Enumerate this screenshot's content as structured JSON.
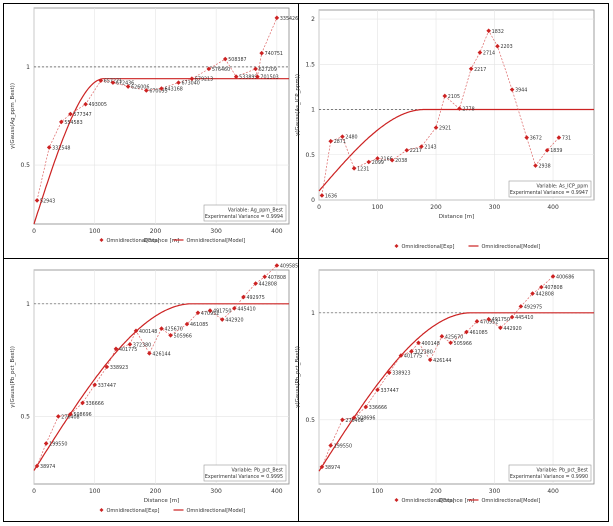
{
  "chart_data": [
    {
      "type": "scatter",
      "xlabel": "Distance [m]",
      "ylabel": "γ(Gauss(Ag_ppm_Best))",
      "xlim": [
        0,
        420
      ],
      "ylim": [
        0.2,
        1.3
      ],
      "yticks": [
        0.5,
        1
      ],
      "xticks": [
        0,
        100,
        200,
        300,
        400
      ],
      "sill": 1,
      "legend_position": "top",
      "series": [
        {
          "name": "Omnidirectional[Exp]",
          "color": "#cc2222",
          "points": [
            {
              "x": 5,
              "y": 0.32,
              "label": "52943"
            },
            {
              "x": 25,
              "y": 0.59,
              "label": "332548"
            },
            {
              "x": 45,
              "y": 0.72,
              "label": "554583"
            },
            {
              "x": 60,
              "y": 0.76,
              "label": "577347"
            },
            {
              "x": 85,
              "y": 0.81,
              "label": "493005"
            },
            {
              "x": 110,
              "y": 0.93,
              "label": "657271"
            },
            {
              "x": 130,
              "y": 0.92,
              "label": "672436"
            },
            {
              "x": 155,
              "y": 0.9,
              "label": "626006"
            },
            {
              "x": 185,
              "y": 0.88,
              "label": "670095"
            },
            {
              "x": 210,
              "y": 0.89,
              "label": "643168"
            },
            {
              "x": 238,
              "y": 0.92,
              "label": "673040"
            },
            {
              "x": 260,
              "y": 0.94,
              "label": "679213"
            },
            {
              "x": 288,
              "y": 0.99,
              "label": "576460"
            },
            {
              "x": 315,
              "y": 1.04,
              "label": "508387"
            },
            {
              "x": 333,
              "y": 0.95,
              "label": "533899"
            },
            {
              "x": 365,
              "y": 0.99,
              "label": "627209"
            },
            {
              "x": 368,
              "y": 0.95,
              "label": "701503"
            },
            {
              "x": 375,
              "y": 1.07,
              "label": "740751"
            },
            {
              "x": 400,
              "y": 1.25,
              "label": "335426"
            }
          ]
        },
        {
          "name": "Omnidirectional[Model]",
          "color": "#cc2222",
          "model": {
            "nugget": 0.2,
            "sill": 0.94,
            "range": 115
          }
        }
      ],
      "annotation": [
        "Variable: Ag_ppm_Best",
        "Experimental Variance = 0.9994"
      ]
    },
    {
      "type": "scatter",
      "xlabel": "Distance [m]",
      "ylabel": "γ(Gauss(As_ICP_ppm))",
      "xlim": [
        0,
        470
      ],
      "ylim": [
        0,
        2.1
      ],
      "yticks": [
        0,
        0.5,
        1,
        1.5,
        2
      ],
      "ytick_labels": [
        "0",
        "0.5",
        "1",
        "1.5",
        "2"
      ],
      "xticks": [
        0,
        100,
        200,
        300,
        400
      ],
      "sill": 1,
      "legend_position": "top",
      "series": [
        {
          "name": "Omnidirectional[Exp]",
          "color": "#cc2222",
          "points": [
            {
              "x": 5,
              "y": 0.05,
              "label": "1636"
            },
            {
              "x": 20,
              "y": 0.65,
              "label": "2871"
            },
            {
              "x": 40,
              "y": 0.7,
              "label": "2480"
            },
            {
              "x": 60,
              "y": 0.35,
              "label": "1231"
            },
            {
              "x": 85,
              "y": 0.42,
              "label": "2099"
            },
            {
              "x": 100,
              "y": 0.46,
              "label": "2166"
            },
            {
              "x": 125,
              "y": 0.44,
              "label": "2038"
            },
            {
              "x": 150,
              "y": 0.55,
              "label": "2217"
            },
            {
              "x": 175,
              "y": 0.59,
              "label": "2143"
            },
            {
              "x": 200,
              "y": 0.8,
              "label": "2921"
            },
            {
              "x": 215,
              "y": 1.15,
              "label": "2105"
            },
            {
              "x": 240,
              "y": 1.01,
              "label": "2778"
            },
            {
              "x": 260,
              "y": 1.45,
              "label": "2217"
            },
            {
              "x": 275,
              "y": 1.63,
              "label": "2714"
            },
            {
              "x": 290,
              "y": 1.87,
              "label": "1832"
            },
            {
              "x": 305,
              "y": 1.7,
              "label": "2203"
            },
            {
              "x": 330,
              "y": 1.22,
              "label": "3944"
            },
            {
              "x": 355,
              "y": 0.69,
              "label": "3672"
            },
            {
              "x": 370,
              "y": 0.38,
              "label": "2938"
            },
            {
              "x": 390,
              "y": 0.55,
              "label": "1839"
            },
            {
              "x": 410,
              "y": 0.69,
              "label": "731"
            }
          ]
        },
        {
          "name": "Omnidirectional[Model]",
          "color": "#cc2222",
          "model": {
            "nugget": 0.1,
            "sill": 1.0,
            "range": 180
          }
        }
      ],
      "annotation": [
        "Variable: As_ICP_ppm",
        "Experimental Variance = 0.9947"
      ]
    },
    {
      "type": "scatter",
      "xlabel": "Distance [m]",
      "ylabel": "γ(Gauss(Pb_pct_Best))",
      "xlim": [
        0,
        420
      ],
      "ylim": [
        0.2,
        1.15
      ],
      "yticks": [
        0.5,
        1
      ],
      "xticks": [
        0,
        100,
        200,
        300,
        400
      ],
      "sill": 1,
      "legend_position": "bottom",
      "series": [
        {
          "name": "Omnidirectional[Exp]",
          "color": "#cc2222",
          "points": [
            {
              "x": 5,
              "y": 0.28,
              "label": "38974"
            },
            {
              "x": 20,
              "y": 0.38,
              "label": "199550"
            },
            {
              "x": 40,
              "y": 0.5,
              "label": "276408"
            },
            {
              "x": 60,
              "y": 0.51,
              "label": "508696"
            },
            {
              "x": 80,
              "y": 0.56,
              "label": "336666"
            },
            {
              "x": 100,
              "y": 0.64,
              "label": "337447"
            },
            {
              "x": 120,
              "y": 0.72,
              "label": "338923"
            },
            {
              "x": 135,
              "y": 0.8,
              "label": "401775"
            },
            {
              "x": 158,
              "y": 0.82,
              "label": "372380"
            },
            {
              "x": 168,
              "y": 0.88,
              "label": "400148"
            },
            {
              "x": 190,
              "y": 0.78,
              "label": "426144"
            },
            {
              "x": 210,
              "y": 0.89,
              "label": "425670"
            },
            {
              "x": 225,
              "y": 0.86,
              "label": "505966"
            },
            {
              "x": 252,
              "y": 0.91,
              "label": "461085"
            },
            {
              "x": 270,
              "y": 0.96,
              "label": "470952"
            },
            {
              "x": 290,
              "y": 0.97,
              "label": "491750"
            },
            {
              "x": 310,
              "y": 0.93,
              "label": "442920"
            },
            {
              "x": 330,
              "y": 0.98,
              "label": "445410"
            },
            {
              "x": 345,
              "y": 1.03,
              "label": "492975"
            },
            {
              "x": 365,
              "y": 1.09,
              "label": "442808"
            },
            {
              "x": 380,
              "y": 1.12,
              "label": "407808"
            },
            {
              "x": 400,
              "y": 1.17,
              "label": "409585"
            }
          ]
        },
        {
          "name": "Omnidirectional[Model]",
          "color": "#cc2222",
          "model": {
            "nugget": 0.26,
            "sill": 1.0,
            "range": 260
          }
        }
      ],
      "annotation": [
        "Variable: Pb_pct_Best",
        "Experimental Variance = 0.9995"
      ]
    },
    {
      "type": "scatter",
      "xlabel": "Distance [m]",
      "ylabel": "γ(Gauss(Pb_pct_Best))",
      "xlim": [
        0,
        470
      ],
      "ylim": [
        0.2,
        1.2
      ],
      "yticks": [
        0.5,
        1
      ],
      "xticks": [
        0,
        100,
        200,
        300,
        400
      ],
      "sill": 1,
      "legend_position": "bottom",
      "series": [
        {
          "name": "Omnidirectional[Exp]",
          "color": "#cc2222",
          "points": [
            {
              "x": 5,
              "y": 0.28,
              "label": "38974"
            },
            {
              "x": 20,
              "y": 0.38,
              "label": "199550"
            },
            {
              "x": 40,
              "y": 0.5,
              "label": "276408"
            },
            {
              "x": 60,
              "y": 0.51,
              "label": "508696"
            },
            {
              "x": 80,
              "y": 0.56,
              "label": "336666"
            },
            {
              "x": 100,
              "y": 0.64,
              "label": "337447"
            },
            {
              "x": 120,
              "y": 0.72,
              "label": "338923"
            },
            {
              "x": 140,
              "y": 0.8,
              "label": "401775"
            },
            {
              "x": 158,
              "y": 0.82,
              "label": "372380"
            },
            {
              "x": 170,
              "y": 0.86,
              "label": "400148"
            },
            {
              "x": 190,
              "y": 0.78,
              "label": "426144"
            },
            {
              "x": 210,
              "y": 0.89,
              "label": "425670"
            },
            {
              "x": 225,
              "y": 0.86,
              "label": "505966"
            },
            {
              "x": 252,
              "y": 0.91,
              "label": "461085"
            },
            {
              "x": 270,
              "y": 0.96,
              "label": "470952"
            },
            {
              "x": 290,
              "y": 0.97,
              "label": "491750"
            },
            {
              "x": 310,
              "y": 0.93,
              "label": "442920"
            },
            {
              "x": 330,
              "y": 0.98,
              "label": "445410"
            },
            {
              "x": 345,
              "y": 1.03,
              "label": "492975"
            },
            {
              "x": 365,
              "y": 1.09,
              "label": "442808"
            },
            {
              "x": 380,
              "y": 1.12,
              "label": "407808"
            },
            {
              "x": 400,
              "y": 1.17,
              "label": "400686"
            }
          ]
        },
        {
          "name": "Omnidirectional[Model]",
          "color": "#cc2222",
          "model": {
            "nugget": 0.26,
            "sill": 1.0,
            "range": 260
          }
        }
      ],
      "annotation": [
        "Variable: Pb_pct_Best",
        "Experimental Variance = 0.9990"
      ]
    }
  ]
}
